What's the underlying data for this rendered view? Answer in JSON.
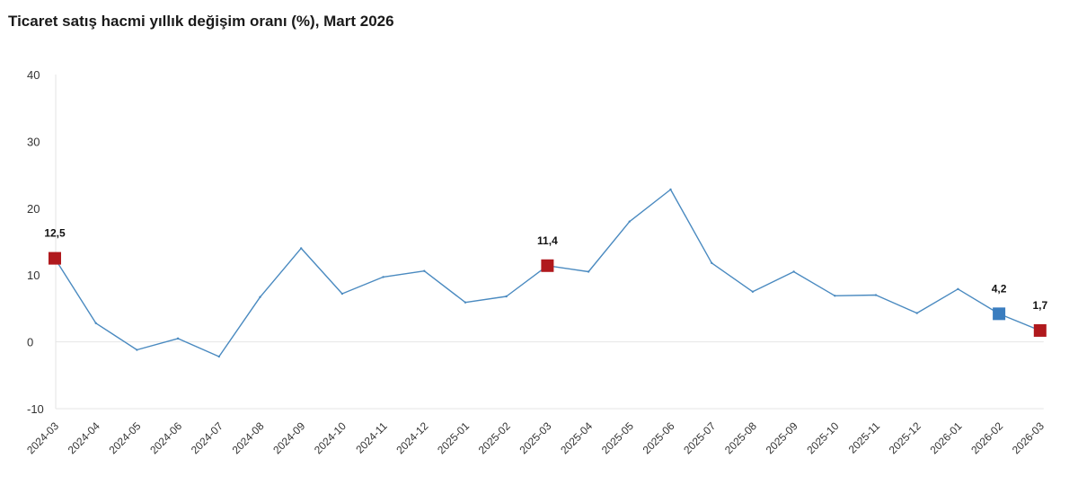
{
  "chart_data": {
    "type": "line",
    "title": "Ticaret satış hacmi yıllık değişim oranı (%), Mart 2026",
    "xlabel": "",
    "ylabel": "",
    "ylim": [
      -10,
      40
    ],
    "yticks": [
      "-10",
      "0",
      "10",
      "20",
      "30",
      "40"
    ],
    "ytick_values": [
      -10,
      0,
      10,
      20,
      30,
      40
    ],
    "grid": false,
    "line_color": "#4a8ac0",
    "categories": [
      "2024-03",
      "2024-04",
      "2024-05",
      "2024-06",
      "2024-07",
      "2024-08",
      "2024-09",
      "2024-10",
      "2024-11",
      "2024-12",
      "2025-01",
      "2025-02",
      "2025-03",
      "2025-04",
      "2025-05",
      "2025-06",
      "2025-07",
      "2025-08",
      "2025-09",
      "2025-10",
      "2025-11",
      "2025-12",
      "2026-01",
      "2026-02",
      "2026-03"
    ],
    "series": [
      {
        "values": [
          12.5,
          2.8,
          -1.2,
          0.5,
          -2.2,
          6.7,
          14.0,
          7.2,
          9.7,
          10.6,
          5.9,
          6.8,
          11.4,
          10.5,
          18.0,
          22.8,
          11.8,
          7.5,
          10.5,
          6.9,
          7.0,
          4.3,
          7.9,
          4.2,
          1.7
        ]
      }
    ],
    "markers": [
      {
        "category": "2024-03",
        "value": 12.5,
        "label": "12,5",
        "color": "#b0191d"
      },
      {
        "category": "2025-03",
        "value": 11.4,
        "label": "11,4",
        "color": "#b0191d"
      },
      {
        "category": "2026-02",
        "value": 4.2,
        "label": "4,2",
        "color": "#3a7dbf"
      },
      {
        "category": "2026-03",
        "value": 1.7,
        "label": "1,7",
        "color": "#b0191d"
      }
    ]
  }
}
